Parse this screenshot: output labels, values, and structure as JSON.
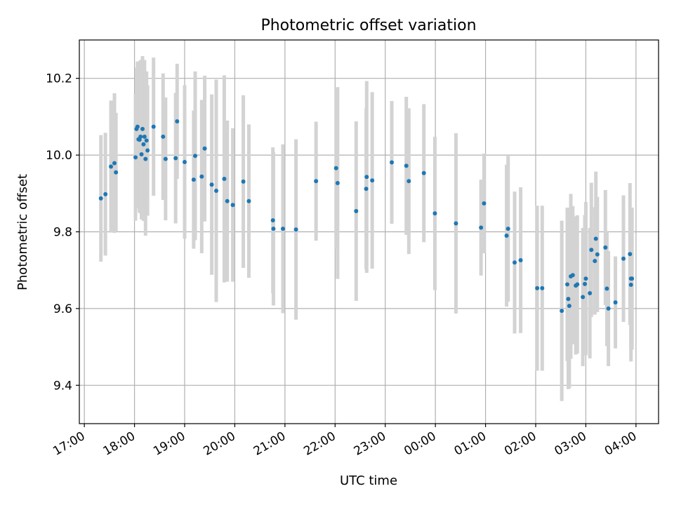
{
  "chart_data": {
    "type": "scatter",
    "title": "Photometric offset variation",
    "xlabel": "UTC time",
    "ylabel": "Photometric offset",
    "x_unit": "UTC hour (continuing past midnight: 24 = 00:00, 25 = 01:00, ...)",
    "xlim": [
      16.9,
      28.45
    ],
    "ylim": [
      9.3,
      10.3
    ],
    "x_ticks": [
      {
        "value": 17,
        "label": "17:00"
      },
      {
        "value": 18,
        "label": "18:00"
      },
      {
        "value": 19,
        "label": "19:00"
      },
      {
        "value": 20,
        "label": "20:00"
      },
      {
        "value": 21,
        "label": "21:00"
      },
      {
        "value": 22,
        "label": "22:00"
      },
      {
        "value": 23,
        "label": "23:00"
      },
      {
        "value": 24,
        "label": "00:00"
      },
      {
        "value": 25,
        "label": "01:00"
      },
      {
        "value": 26,
        "label": "02:00"
      },
      {
        "value": 27,
        "label": "03:00"
      },
      {
        "value": 28,
        "label": "04:00"
      }
    ],
    "y_ticks": [
      {
        "value": 9.4,
        "label": "9.4"
      },
      {
        "value": 9.6,
        "label": "9.6"
      },
      {
        "value": 9.8,
        "label": "9.8"
      },
      {
        "value": 10.0,
        "label": "10.0"
      },
      {
        "value": 10.2,
        "label": "10.2"
      }
    ],
    "grid": true,
    "x_tick_rotation": "slanted",
    "colors": {
      "points": "#1f77b4",
      "errorbars": "#d3d3d3",
      "grid": "#b0b0b0"
    },
    "series": [
      {
        "x": [
          17.33,
          17.42,
          17.53,
          17.6,
          17.63,
          18.02,
          18.04,
          18.06,
          18.08,
          18.1,
          18.12,
          18.14,
          18.16,
          18.18,
          18.2,
          18.22,
          18.24,
          18.26,
          18.38,
          18.57,
          18.62,
          18.82,
          18.85,
          19.0,
          19.18,
          19.21,
          19.34,
          19.4,
          19.54,
          19.63,
          19.79,
          19.85,
          19.96,
          20.17,
          20.28,
          20.76,
          20.77,
          20.96,
          21.22,
          21.62,
          22.02,
          22.05,
          22.42,
          22.62,
          22.63,
          22.74,
          23.13,
          23.42,
          23.47,
          23.77,
          23.99,
          24.41,
          24.91,
          24.97,
          25.42,
          25.45,
          25.58,
          25.7,
          26.03,
          26.13,
          26.52,
          26.63,
          26.65,
          26.67,
          26.7,
          26.74,
          26.8,
          26.83,
          26.94,
          26.98,
          27.0,
          27.08,
          27.11,
          27.18,
          27.2,
          27.23,
          27.39,
          27.42,
          27.45,
          27.59,
          27.75,
          27.88,
          27.9,
          27.9,
          27.92
        ],
        "y": [
          9.887,
          9.898,
          9.97,
          9.979,
          9.955,
          9.994,
          10.068,
          10.074,
          10.041,
          10.04,
          10.048,
          10.002,
          10.068,
          10.028,
          10.048,
          9.99,
          10.038,
          10.012,
          10.074,
          10.048,
          9.99,
          9.992,
          10.088,
          9.982,
          9.936,
          9.998,
          9.944,
          10.017,
          9.923,
          9.907,
          9.938,
          9.88,
          9.87,
          9.931,
          9.88,
          9.83,
          9.808,
          9.808,
          9.806,
          9.932,
          9.966,
          9.927,
          9.854,
          9.912,
          9.943,
          9.934,
          9.981,
          9.972,
          9.932,
          9.953,
          9.848,
          9.822,
          9.811,
          9.874,
          9.79,
          9.808,
          9.72,
          9.726,
          9.653,
          9.653,
          9.594,
          9.663,
          9.625,
          9.607,
          9.684,
          9.687,
          9.66,
          9.663,
          9.63,
          9.664,
          9.678,
          9.64,
          9.753,
          9.724,
          9.782,
          9.741,
          9.759,
          9.652,
          9.6,
          9.616,
          9.73,
          9.742,
          9.662,
          9.678,
          9.678
        ],
        "yerr": [
          0.165,
          0.16,
          0.172,
          0.182,
          0.155,
          0.165,
          0.16,
          0.17,
          0.18,
          0.19,
          0.2,
          0.17,
          0.19,
          0.2,
          0.2,
          0.2,
          0.18,
          0.17,
          0.18,
          0.165,
          0.16,
          0.17,
          0.15,
          0.2,
          0.18,
          0.22,
          0.2,
          0.19,
          0.235,
          0.29,
          0.27,
          0.21,
          0.2,
          0.225,
          0.2,
          0.19,
          0.2,
          0.22,
          0.235,
          0.155,
          0.21,
          0.25,
          0.234,
          0.21,
          0.25,
          0.23,
          0.16,
          0.18,
          0.19,
          0.18,
          0.2,
          0.235,
          0.125,
          0.13,
          0.185,
          0.19,
          0.185,
          0.19,
          0.215,
          0.215,
          0.235,
          0.2,
          0.235,
          0.215,
          0.215,
          0.18,
          0.18,
          0.18,
          0.18,
          0.18,
          0.2,
          0.17,
          0.175,
          0.14,
          0.175,
          0.15,
          0.15,
          0.15,
          0.15,
          0.12,
          0.165,
          0.185,
          0.2,
          0.185,
          0.185
        ]
      }
    ]
  }
}
